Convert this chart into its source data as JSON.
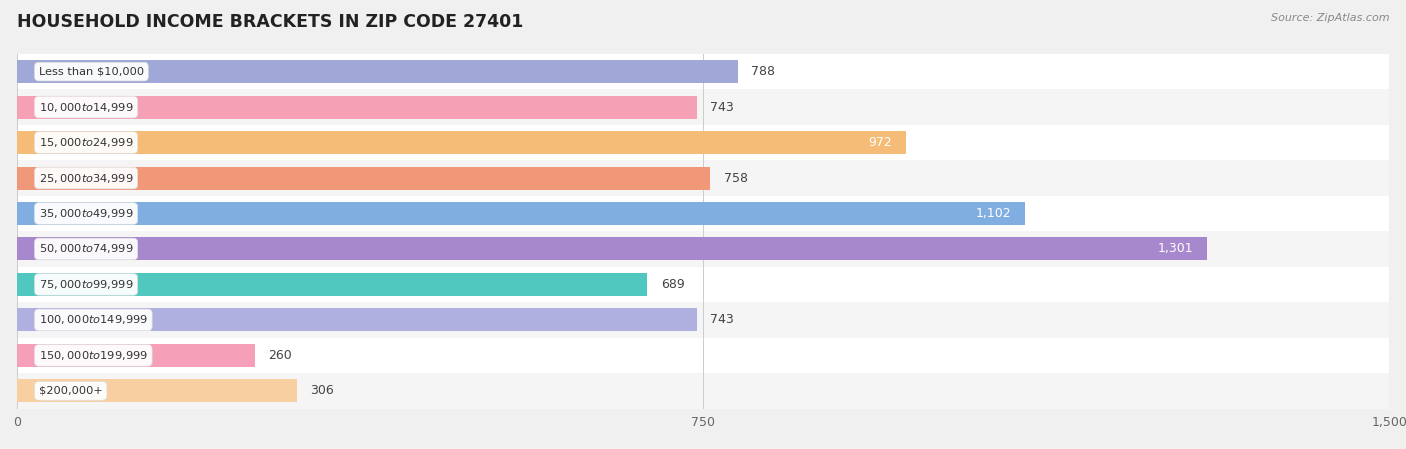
{
  "title": "HOUSEHOLD INCOME BRACKETS IN ZIP CODE 27401",
  "source": "Source: ZipAtlas.com",
  "categories": [
    "Less than $10,000",
    "$10,000 to $14,999",
    "$15,000 to $24,999",
    "$25,000 to $34,999",
    "$35,000 to $49,999",
    "$50,000 to $74,999",
    "$75,000 to $99,999",
    "$100,000 to $149,999",
    "$150,000 to $199,999",
    "$200,000+"
  ],
  "values": [
    788,
    743,
    972,
    758,
    1102,
    1301,
    689,
    743,
    260,
    306
  ],
  "bar_colors": [
    "#a0a8d8",
    "#f5a0b4",
    "#f5bc78",
    "#f09878",
    "#80aee0",
    "#a888cc",
    "#50c8c0",
    "#b0b0e0",
    "#f5a0b8",
    "#f8cfa0"
  ],
  "xlim": [
    0,
    1500
  ],
  "xticks": [
    0,
    750,
    1500
  ],
  "background_color": "#f0f0f0",
  "label_inside_threshold": 900,
  "bar_height": 0.65,
  "row_bg_even": "#ffffff",
  "row_bg_odd": "#f5f5f5"
}
